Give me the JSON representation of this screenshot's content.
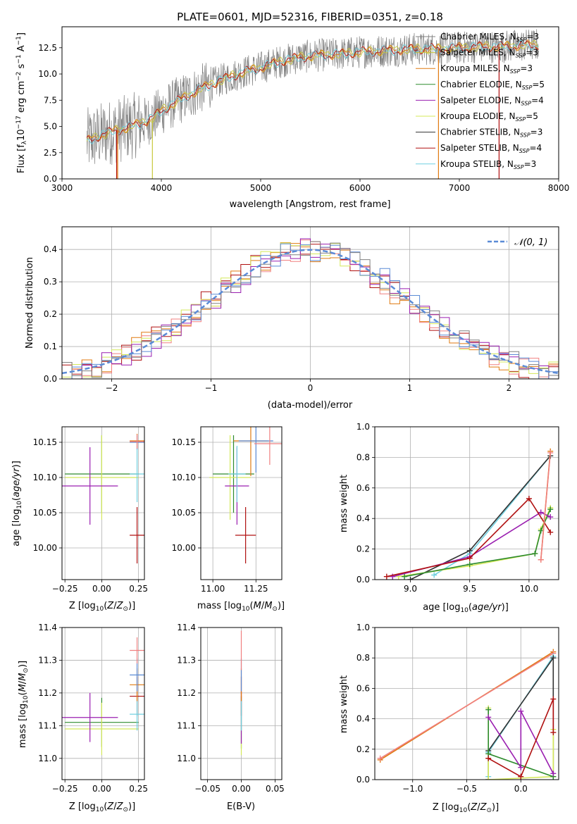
{
  "figure": {
    "title": "PLATE=0601, MJD=52316, FIBERID=0351, z=0.18"
  },
  "series_colors": [
    "#808080",
    "#c8c83a",
    "#e07a10",
    "#2e8b2e",
    "#9a1fb0",
    "#d4e85a",
    "#333333",
    "#b01010",
    "#70d0e0"
  ],
  "chart_data": [
    {
      "id": "spectrum",
      "type": "line",
      "title": "PLATE=0601, MJD=52316, FIBERID=0351, z=0.18",
      "xlabel": "wavelength [Angstrom, rest frame]",
      "ylabel": "Flux [f_λ 10^-17 erg cm^-2 s^-1 A^-1]",
      "xlim": [
        3000,
        8000
      ],
      "ylim": [
        0,
        14.5
      ],
      "xticks": [
        3000,
        4000,
        5000,
        6000,
        7000,
        8000
      ],
      "yticks": [
        0.0,
        2.5,
        5.0,
        7.5,
        10.0,
        12.5
      ],
      "grid": false,
      "legend_position": "top-right",
      "legend": [
        {
          "name": "Chabrier MILES, N_SSP=3",
          "color": "#808080"
        },
        {
          "name": "Salpeter MILES, N_SSP=3",
          "color": "#c8c83a"
        },
        {
          "name": "Kroupa MILES, N_SSP=3",
          "color": "#e07a10"
        },
        {
          "name": "Chabrier ELODIE, N_SSP=5",
          "color": "#2e8b2e"
        },
        {
          "name": "Salpeter ELODIE, N_SSP=4",
          "color": "#9a1fb0"
        },
        {
          "name": "Kroupa ELODIE, N_SSP=5",
          "color": "#d4e85a"
        },
        {
          "name": "Chabrier STELIB, N_SSP=3",
          "color": "#333333"
        },
        {
          "name": "Salpeter STELIB, N_SSP=4",
          "color": "#b01010"
        },
        {
          "name": "Kroupa STELIB, N_SSP=3",
          "color": "#70d0e0"
        }
      ],
      "continuum": {
        "x": [
          3250,
          3400,
          3500,
          3700,
          3900,
          4000,
          4200,
          4400,
          4600,
          4800,
          5000,
          5200,
          5400,
          5600,
          5800,
          6000,
          6200,
          6400,
          6600,
          6800,
          7000,
          7200,
          7400,
          7600,
          7800
        ],
        "y": [
          3.6,
          4.2,
          4.5,
          5.0,
          5.7,
          6.5,
          7.6,
          8.6,
          9.4,
          10.1,
          10.6,
          11.2,
          11.6,
          11.8,
          11.9,
          12.1,
          12.2,
          12.3,
          12.4,
          12.4,
          12.5,
          12.6,
          12.6,
          12.7,
          12.8
        ]
      }
    },
    {
      "id": "residuals",
      "type": "line",
      "xlabel": "(data-model)/error",
      "ylabel": "Normed distribution",
      "xlim": [
        -2.5,
        2.5
      ],
      "ylim": [
        0,
        0.47
      ],
      "xticks": [
        -2,
        -1,
        0,
        1,
        2
      ],
      "yticks": [
        0.0,
        0.1,
        0.2,
        0.3,
        0.4
      ],
      "grid": true,
      "legend_position": "top-right",
      "legend": [
        {
          "name": "N(0,1)",
          "color": "#5b8bd6"
        }
      ],
      "histogram_colors": [
        "#e07a10",
        "#b01010",
        "#f08080",
        "#d4e85a",
        "#9a1fb0",
        "#5b8bd6",
        "#808080"
      ],
      "histogram_bin_width": 0.1
    },
    {
      "id": "age_vs_Z",
      "type": "scatter",
      "xlabel": "Z [log10(Z/Z⊙)]",
      "ylabel": "age [log10(age/yr)]",
      "xlim": [
        -0.27,
        0.29
      ],
      "ylim": [
        9.955,
        10.172
      ],
      "xticks": [
        -0.25,
        0.0,
        0.25
      ],
      "yticks": [
        10.0,
        10.05,
        10.1,
        10.15
      ],
      "grid": true,
      "points": [
        {
          "x": 0.0,
          "y": 10.105,
          "xerr": 0.25,
          "yerr": 0.055,
          "color": "#2e8b2e"
        },
        {
          "x": 0.0,
          "y": 10.1,
          "xerr": 0.25,
          "yerr": 0.06,
          "color": "#d4e85a"
        },
        {
          "x": -0.08,
          "y": 10.088,
          "xerr": 0.19,
          "yerr": 0.055,
          "color": "#9a1fb0"
        },
        {
          "x": 0.24,
          "y": 10.018,
          "xerr": 0.05,
          "yerr": 0.04,
          "color": "#b01010"
        },
        {
          "x": 0.24,
          "y": 10.105,
          "xerr": 0.05,
          "yerr": 0.04,
          "color": "#70d0e0"
        },
        {
          "x": 0.24,
          "y": 10.152,
          "xerr": 0.05,
          "yerr": 0.01,
          "color": "#e07a10"
        },
        {
          "x": 0.24,
          "y": 10.15,
          "xerr": 0.05,
          "yerr": 0.01,
          "color": "#5b8bd6"
        },
        {
          "x": 0.24,
          "y": 10.151,
          "xerr": 0.05,
          "yerr": 0.01,
          "color": "#f08080"
        }
      ]
    },
    {
      "id": "age_vs_mass",
      "type": "scatter",
      "xlabel": "mass [log10(M/M⊙)]",
      "ylabel": "",
      "xlim": [
        10.93,
        11.4
      ],
      "ylim": [
        9.955,
        10.172
      ],
      "xticks": [
        11.0,
        11.25
      ],
      "yticks": [
        10.0,
        10.05,
        10.1,
        10.15
      ],
      "grid": true,
      "points": [
        {
          "x": 11.12,
          "y": 10.105,
          "xerr": 0.12,
          "yerr": 0.055,
          "color": "#2e8b2e"
        },
        {
          "x": 11.1,
          "y": 10.1,
          "xerr": 0.12,
          "yerr": 0.06,
          "color": "#d4e85a"
        },
        {
          "x": 11.14,
          "y": 10.088,
          "xerr": 0.07,
          "yerr": 0.055,
          "color": "#9a1fb0"
        },
        {
          "x": 11.19,
          "y": 10.018,
          "xerr": 0.06,
          "yerr": 0.04,
          "color": "#b01010"
        },
        {
          "x": 11.14,
          "y": 10.105,
          "xerr": 0.05,
          "yerr": 0.04,
          "color": "#70d0e0"
        },
        {
          "x": 11.22,
          "y": 10.152,
          "xerr": 0.1,
          "yerr": 0.05,
          "color": "#e07a10"
        },
        {
          "x": 11.25,
          "y": 10.152,
          "xerr": 0.1,
          "yerr": 0.045,
          "color": "#5b8bd6"
        },
        {
          "x": 11.33,
          "y": 10.148,
          "xerr": 0.09,
          "yerr": 0.03,
          "color": "#f08080"
        }
      ]
    },
    {
      "id": "weight_vs_age",
      "type": "line",
      "xlabel": "age [log10(age/yr)]",
      "ylabel": "mass weight",
      "xlim": [
        8.7,
        10.25
      ],
      "ylim": [
        0,
        1.0
      ],
      "xticks": [
        9.0,
        9.5,
        10.0
      ],
      "yticks": [
        0.0,
        0.2,
        0.4,
        0.6,
        0.8,
        1.0
      ],
      "grid": true,
      "series": [
        {
          "color": "#70d0e0",
          "x": [
            9.2,
            9.5,
            10.18
          ],
          "y": [
            0.03,
            0.17,
            0.81
          ]
        },
        {
          "color": "#333333",
          "x": [
            9.0,
            9.5,
            10.18
          ],
          "y": [
            0.0,
            0.19,
            0.81
          ]
        },
        {
          "color": "#d4e85a",
          "x": [
            8.9,
            9.5,
            10.05,
            10.1,
            10.18
          ],
          "y": [
            0.02,
            0.09,
            0.17,
            0.33,
            0.47
          ]
        },
        {
          "color": "#2e8b2e",
          "x": [
            8.95,
            9.5,
            10.05,
            10.1,
            10.18
          ],
          "y": [
            0.02,
            0.1,
            0.17,
            0.32,
            0.46
          ]
        },
        {
          "color": "#9a1fb0",
          "x": [
            8.85,
            9.5,
            10.1,
            10.18
          ],
          "y": [
            0.02,
            0.15,
            0.44,
            0.41
          ]
        },
        {
          "color": "#b01010",
          "x": [
            8.8,
            9.5,
            10.0,
            10.18
          ],
          "y": [
            0.02,
            0.14,
            0.53,
            0.31
          ]
        },
        {
          "color": "#e07a10",
          "x": [
            10.1,
            10.18
          ],
          "y": [
            0.13,
            0.84
          ]
        },
        {
          "color": "#f08080",
          "x": [
            10.1,
            10.18
          ],
          "y": [
            0.13,
            0.83
          ]
        }
      ]
    },
    {
      "id": "mass_vs_Z",
      "type": "scatter",
      "xlabel": "Z [log10(Z/Z⊙)]",
      "ylabel": "mass [log10(M/M⊙)]",
      "xlim": [
        -0.27,
        0.29
      ],
      "ylim": [
        10.935,
        11.4
      ],
      "xticks": [
        -0.25,
        0.0,
        0.25
      ],
      "yticks": [
        11.0,
        11.1,
        11.2,
        11.3,
        11.4
      ],
      "grid": true,
      "points": [
        {
          "x": 0.0,
          "y": 11.11,
          "xerr": 0.25,
          "yerr": 0.075,
          "color": "#2e8b2e"
        },
        {
          "x": 0.0,
          "y": 11.09,
          "xerr": 0.25,
          "yerr": 0.08,
          "color": "#d4e85a"
        },
        {
          "x": -0.08,
          "y": 11.125,
          "xerr": 0.19,
          "yerr": 0.075,
          "color": "#9a1fb0"
        },
        {
          "x": 0.24,
          "y": 11.19,
          "xerr": 0.05,
          "yerr": 0.06,
          "color": "#b01010"
        },
        {
          "x": 0.24,
          "y": 11.135,
          "xerr": 0.05,
          "yerr": 0.05,
          "color": "#70d0e0"
        },
        {
          "x": 0.24,
          "y": 11.225,
          "xerr": 0.05,
          "yerr": 0.05,
          "color": "#e07a10"
        },
        {
          "x": 0.24,
          "y": 11.255,
          "xerr": 0.05,
          "yerr": 0.05,
          "color": "#5b8bd6"
        },
        {
          "x": 0.24,
          "y": 11.33,
          "xerr": 0.05,
          "yerr": 0.04,
          "color": "#f08080"
        }
      ]
    },
    {
      "id": "mass_vs_ebv",
      "type": "scatter",
      "xlabel": "E(B-V)",
      "ylabel": "",
      "xlim": [
        -0.06,
        0.06
      ],
      "ylim": [
        10.935,
        11.4
      ],
      "xticks": [
        -0.05,
        0.0,
        0.05
      ],
      "yticks": [
        11.0,
        11.1,
        11.2,
        11.3,
        11.4
      ],
      "grid": true,
      "points": [
        {
          "x": 0.0,
          "y": 11.11,
          "xerr": 0.0,
          "yerr": 0.08,
          "color": "#2e8b2e"
        },
        {
          "x": 0.0,
          "y": 11.09,
          "xerr": 0.0,
          "yerr": 0.08,
          "color": "#d4e85a"
        },
        {
          "x": 0.0,
          "y": 11.125,
          "xerr": 0.0,
          "yerr": 0.08,
          "color": "#9a1fb0"
        },
        {
          "x": 0.0,
          "y": 11.19,
          "xerr": 0.0,
          "yerr": 0.06,
          "color": "#b01010"
        },
        {
          "x": 0.0,
          "y": 11.135,
          "xerr": 0.0,
          "yerr": 0.05,
          "color": "#70d0e0"
        },
        {
          "x": 0.0,
          "y": 11.225,
          "xerr": 0.0,
          "yerr": 0.05,
          "color": "#e07a10"
        },
        {
          "x": 0.0,
          "y": 11.255,
          "xerr": 0.0,
          "yerr": 0.05,
          "color": "#5b8bd6"
        },
        {
          "x": 0.0,
          "y": 11.33,
          "xerr": 0.0,
          "yerr": 0.06,
          "color": "#f08080"
        }
      ]
    },
    {
      "id": "weight_vs_Z",
      "type": "line",
      "xlabel": "Z [log10(Z/Z⊙)]",
      "ylabel": "mass weight",
      "xlim": [
        -1.35,
        0.35
      ],
      "ylim": [
        0,
        1.0
      ],
      "xticks": [
        -1.0,
        -0.5,
        0.0
      ],
      "yticks": [
        0.0,
        0.2,
        0.4,
        0.6,
        0.8,
        1.0
      ],
      "grid": true,
      "series": [
        {
          "color": "#e07a10",
          "x": [
            -1.3,
            0.3
          ],
          "y": [
            0.13,
            0.84
          ]
        },
        {
          "color": "#f08080",
          "x": [
            -1.3,
            0.3
          ],
          "y": [
            0.14,
            0.83
          ]
        },
        {
          "color": "#70d0e0",
          "x": [
            -0.3,
            -0.3,
            0.3
          ],
          "y": [
            0.02,
            0.18,
            0.81
          ]
        },
        {
          "color": "#333333",
          "x": [
            -0.3,
            -0.3,
            0.3,
            0.3
          ],
          "y": [
            0.0,
            0.19,
            0.8,
            0.02
          ]
        },
        {
          "color": "#d4e85a",
          "x": [
            -0.3,
            -0.3,
            0.3,
            0.3
          ],
          "y": [
            0.47,
            0.0,
            0.02,
            0.33
          ]
        },
        {
          "color": "#2e8b2e",
          "x": [
            -0.3,
            -0.3,
            0.3
          ],
          "y": [
            0.46,
            0.17,
            0.02
          ]
        },
        {
          "color": "#9a1fb0",
          "x": [
            -0.3,
            0.0,
            0.0,
            0.3
          ],
          "y": [
            0.41,
            0.08,
            0.45,
            0.04
          ]
        },
        {
          "color": "#b01010",
          "x": [
            -0.3,
            0.0,
            0.3,
            0.3
          ],
          "y": [
            0.14,
            0.02,
            0.53,
            0.31
          ]
        }
      ]
    }
  ]
}
